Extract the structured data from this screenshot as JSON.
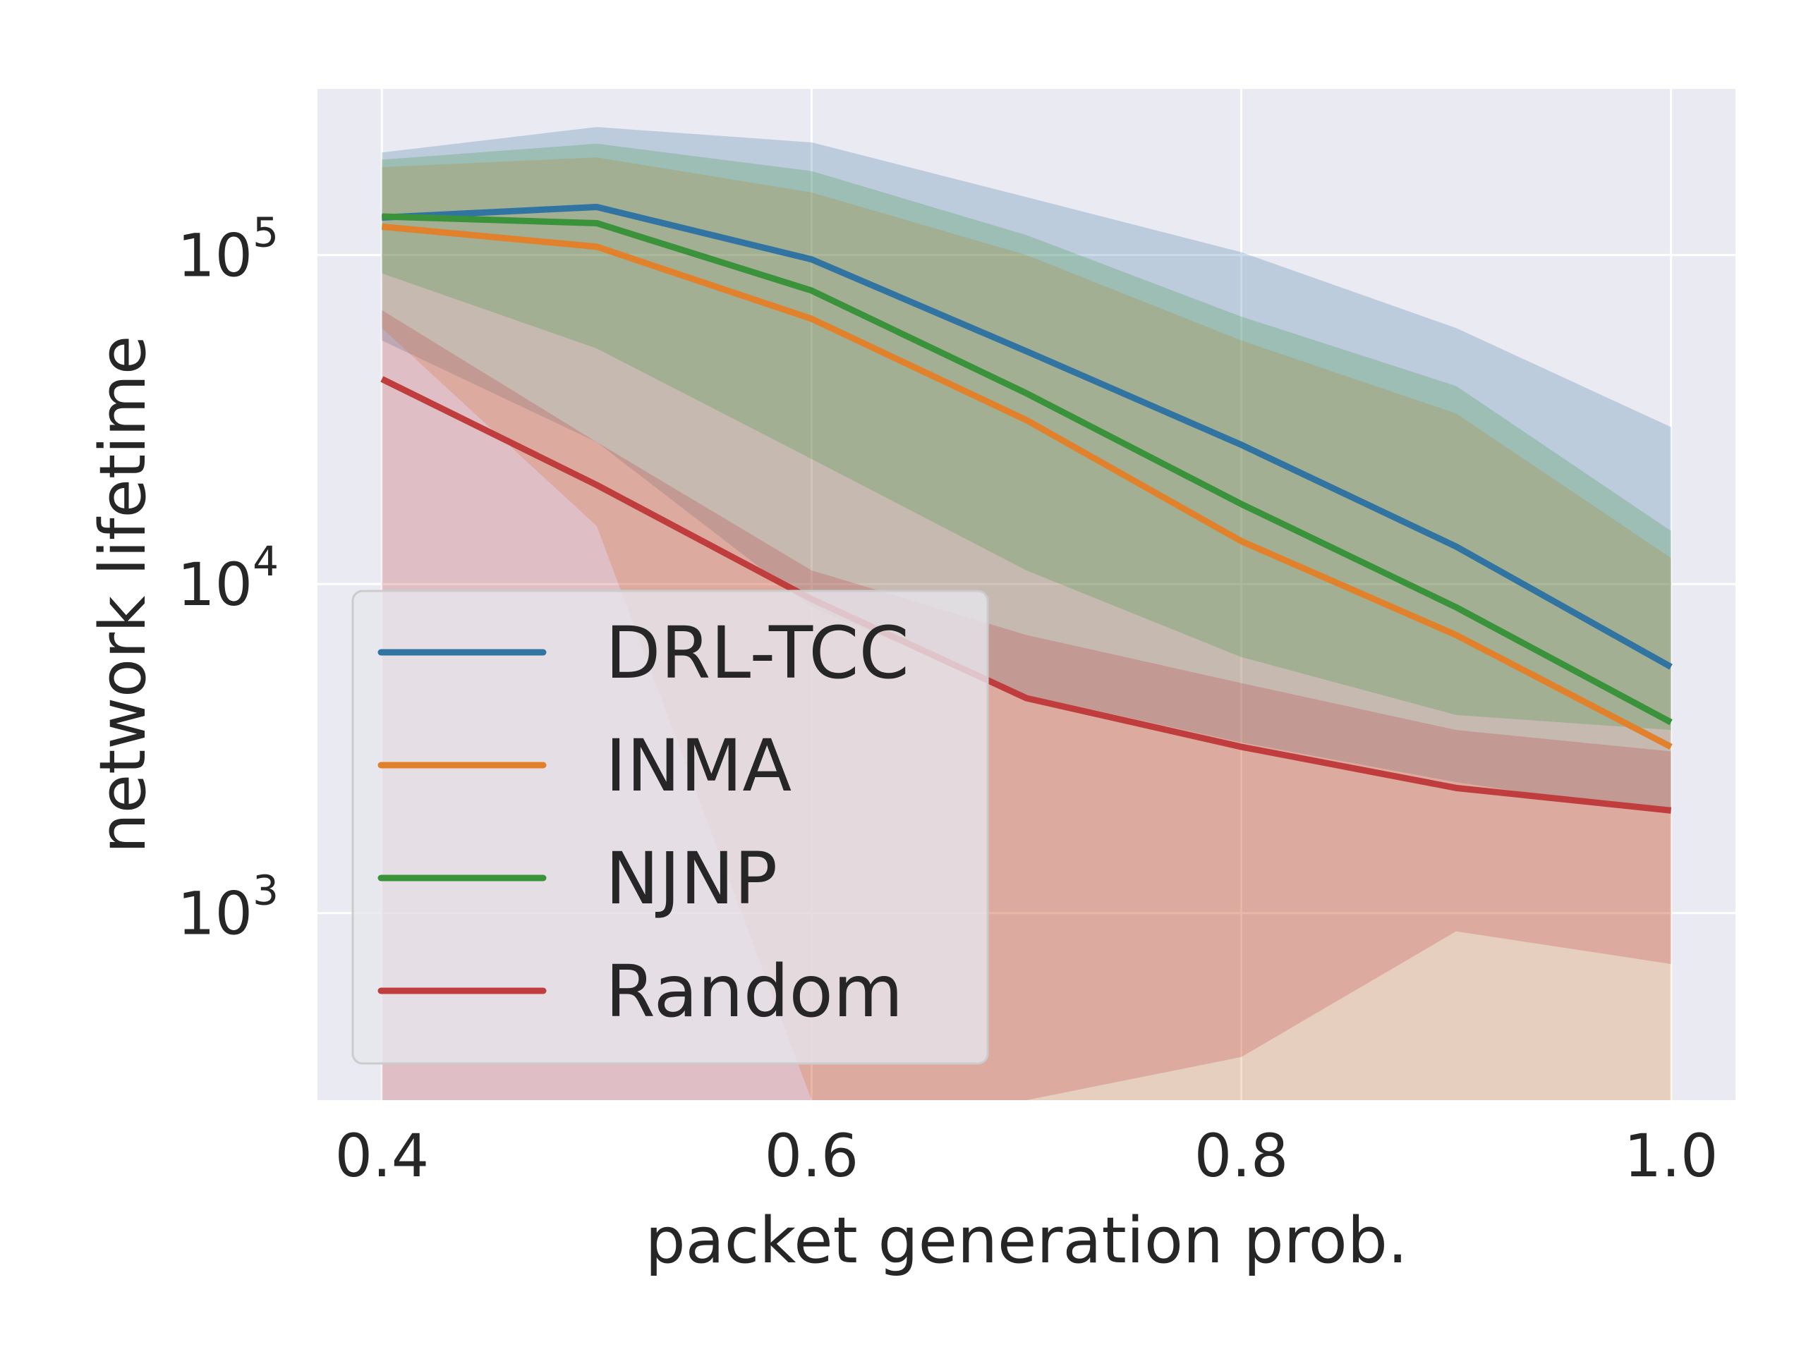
{
  "chart_data": {
    "type": "line",
    "xlabel": "packet generation prob.",
    "ylabel": "network lifetime",
    "xlim": [
      0.37,
      1.03
    ],
    "ylim": [
      270,
      320000
    ],
    "yscale": "log",
    "grid": true,
    "legend_position": "lower-left",
    "x_ticks": [
      {
        "value": 0.4,
        "label": "0.4"
      },
      {
        "value": 0.6,
        "label": "0.6"
      },
      {
        "value": 0.8,
        "label": "0.8"
      },
      {
        "value": 1.0,
        "label": "1.0"
      }
    ],
    "y_ticks": [
      {
        "value": 1000,
        "base": "10",
        "exp": "3"
      },
      {
        "value": 10000,
        "base": "10",
        "exp": "4"
      },
      {
        "value": 100000,
        "base": "10",
        "exp": "5"
      }
    ],
    "x": [
      0.4,
      0.5,
      0.6,
      0.7,
      0.8,
      0.9,
      1.0
    ],
    "series": [
      {
        "name": "DRL-TCC",
        "color": "#3274a1",
        "values": [
          130000,
          140000,
          97000,
          51000,
          26500,
          13000,
          5600
        ],
        "band_upper": [
          205000,
          245000,
          220000,
          150000,
          102000,
          60000,
          30000
        ],
        "band_lower": [
          55000,
          27000,
          8500,
          4600,
          3300,
          2500,
          2000
        ]
      },
      {
        "name": "INMA",
        "color": "#e1812c",
        "values": [
          122000,
          106000,
          64000,
          31500,
          13500,
          7000,
          3200
        ],
        "band_upper": [
          185000,
          198000,
          155000,
          100000,
          55000,
          33000,
          12000
        ],
        "band_lower": [
          60000,
          15000,
          270,
          270,
          270,
          270,
          270
        ]
      },
      {
        "name": "NJNP",
        "color": "#3a923a",
        "values": [
          131000,
          125000,
          78000,
          38000,
          17500,
          8500,
          3800
        ],
        "band_upper": [
          195000,
          218000,
          180000,
          115000,
          65000,
          40000,
          14500
        ],
        "band_lower": [
          88000,
          52000,
          24000,
          11000,
          6000,
          4000,
          3600
        ]
      },
      {
        "name": "Random",
        "color": "#c03d3e",
        "values": [
          42000,
          20000,
          9000,
          4500,
          3200,
          2400,
          2050
        ],
        "band_upper": [
          68000,
          27000,
          11000,
          7000,
          5000,
          3600,
          3100
        ],
        "band_lower": [
          270,
          270,
          270,
          270,
          365,
          880,
          700
        ]
      }
    ]
  }
}
